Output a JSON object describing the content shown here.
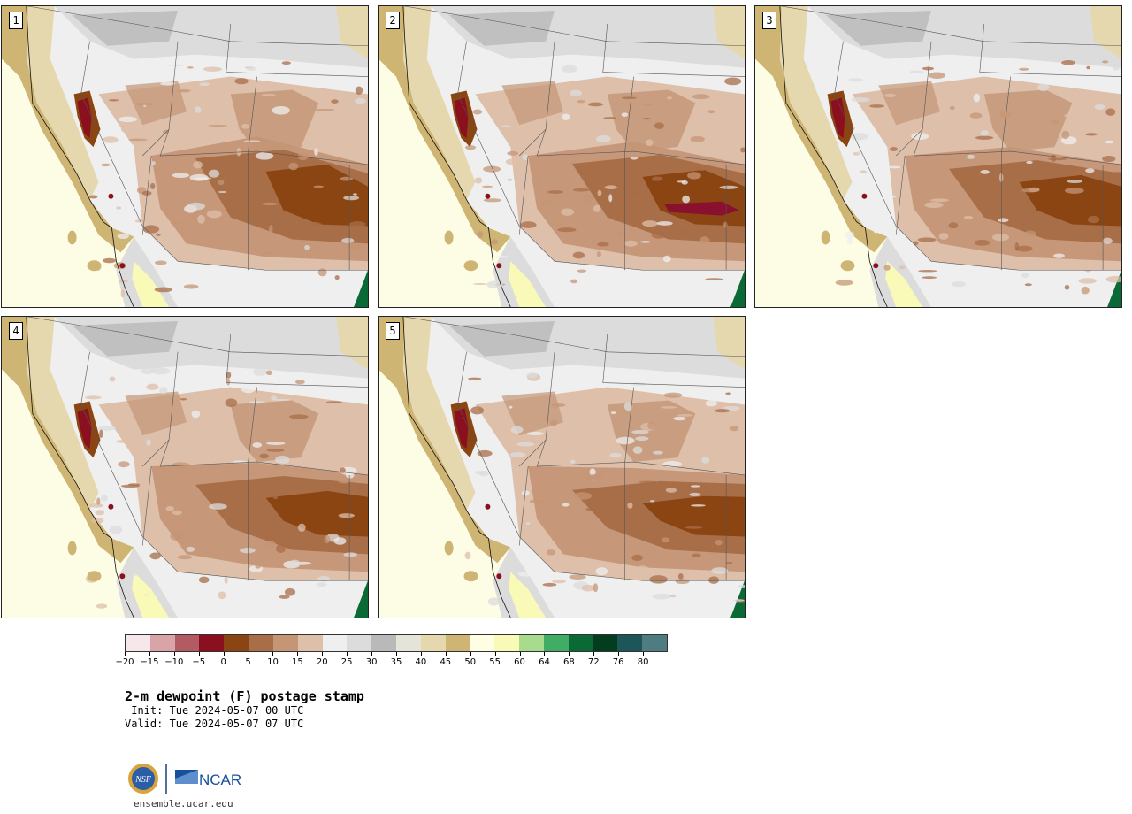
{
  "panels": [
    {
      "label": "1",
      "variant": 0
    },
    {
      "label": "2",
      "variant": 1
    },
    {
      "label": "3",
      "variant": 2
    },
    {
      "label": "4",
      "variant": 3
    },
    {
      "label": "5",
      "variant": 4
    }
  ],
  "colorbar": {
    "tick_labels": [
      "−20",
      "−15",
      "−10",
      "−5",
      "0",
      "5",
      "10",
      "15",
      "20",
      "25",
      "30",
      "35",
      "40",
      "45",
      "50",
      "55",
      "60",
      "64",
      "68",
      "72",
      "76",
      "80"
    ],
    "colors": [
      "#f6e8ea",
      "#d8a4a8",
      "#b45a62",
      "#8a1020",
      "#8b4513",
      "#a86e48",
      "#c49676",
      "#ddbfaa",
      "#efefef",
      "#dcdcdc",
      "#b9b9b9",
      "#e4e4d8",
      "#e6d8ae",
      "#cfb574",
      "#fefee4",
      "#fafab8",
      "#a6dc8c",
      "#40ac64",
      "#0a6a36",
      "#043c20",
      "#1c5658",
      "#4e7c80"
    ]
  },
  "title": "2-m dewpoint (F) postage stamp",
  "init": " Init: Tue 2024-05-07 00 UTC",
  "valid": "Valid: Tue 2024-05-07 07 UTC",
  "logos": {
    "left": "NSF",
    "right": "NCAR"
  },
  "website": "ensemble.ucar.edu",
  "colors": {
    "ocean": "#fdfde6",
    "coast_tan": "#cfb574",
    "light_tan": "#e6d8ae",
    "gray_light": "#efefef",
    "gray_mid": "#dcdcdc",
    "gray_dark": "#b9b9b9",
    "brown_light": "#ddbfaa",
    "brown_mid": "#c49676",
    "brown_dark": "#a86e48",
    "brown_deep": "#8b4513",
    "red_dark": "#8a1020",
    "green": "#0a6a36"
  }
}
